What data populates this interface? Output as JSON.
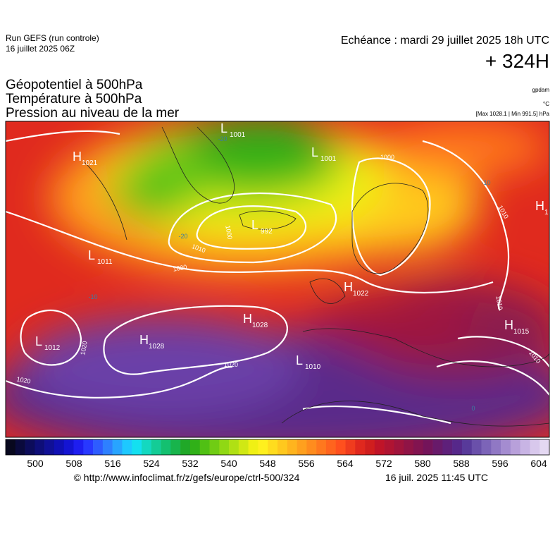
{
  "header": {
    "run": "Run GEFS (run controle)",
    "date": "16 juillet 2025 06Z",
    "echeance": "Echéance : mardi 29 juillet 2025 18h UTC",
    "lead": "+ 324H"
  },
  "layers": [
    "Géopotentiel à 500hPa",
    "Température à 500hPa",
    "Pression au niveau de la mer"
  ],
  "units": [
    "gpdam",
    "°C",
    "[Max 1028.1 | Min 991.5] hPa"
  ],
  "centers": [
    {
      "type": "H",
      "value": 1021
    },
    {
      "type": "L",
      "value": 1001
    },
    {
      "type": "L",
      "value": 1001
    },
    {
      "type": "L",
      "value": 992
    },
    {
      "type": "L",
      "value": 1011
    },
    {
      "type": "H",
      "value": 1022
    },
    {
      "type": "H",
      "value": 1028
    },
    {
      "type": "H",
      "value": 1028
    },
    {
      "type": "L",
      "value": 1012
    },
    {
      "type": "L",
      "value": 1010
    },
    {
      "type": "H",
      "value": 1015
    },
    {
      "type": "H",
      "value": 1
    }
  ],
  "isobar_labels": [
    1000,
    1010,
    1000,
    1010,
    1020,
    1010,
    1010,
    1020,
    1020,
    1020
  ],
  "temperature_labels": [
    -20,
    -20,
    -10,
    -10,
    0
  ],
  "colorbar": {
    "colors": [
      "#08081e",
      "#0a0a3c",
      "#0c0c5a",
      "#0e0e78",
      "#101096",
      "#1010b4",
      "#1414d2",
      "#1e1ef0",
      "#2838ff",
      "#2e5cff",
      "#2e80ff",
      "#28a4ff",
      "#1ec8ff",
      "#14e0f0",
      "#14d8c0",
      "#14cc96",
      "#14c070",
      "#18b44c",
      "#20a828",
      "#30b018",
      "#50c014",
      "#70cc14",
      "#90d814",
      "#b0e014",
      "#d0e814",
      "#f0f014",
      "#fff01e",
      "#ffdc1e",
      "#ffc81e",
      "#ffb41e",
      "#ffa01e",
      "#ff8c1e",
      "#ff781e",
      "#ff641e",
      "#ff501e",
      "#f03c1e",
      "#e0281e",
      "#d01e1e",
      "#c01428",
      "#b01432",
      "#a0143c",
      "#901446",
      "#821450",
      "#74145a",
      "#681a6a",
      "#5e207a",
      "#56288a",
      "#583a9a",
      "#6a50aa",
      "#7c64b8",
      "#9078c4",
      "#a48cd0",
      "#b8a0da",
      "#c8b4e4",
      "#d8c8ec",
      "#e4d8f2"
    ],
    "ticks": [
      500,
      508,
      516,
      524,
      532,
      540,
      548,
      556,
      564,
      572,
      580,
      588,
      596,
      604
    ]
  },
  "footer": {
    "url": "© http://www.infoclimat.fr/z/gefs/europe/ctrl-500/324",
    "time": "16 juil. 2025 11:45 UTC"
  }
}
